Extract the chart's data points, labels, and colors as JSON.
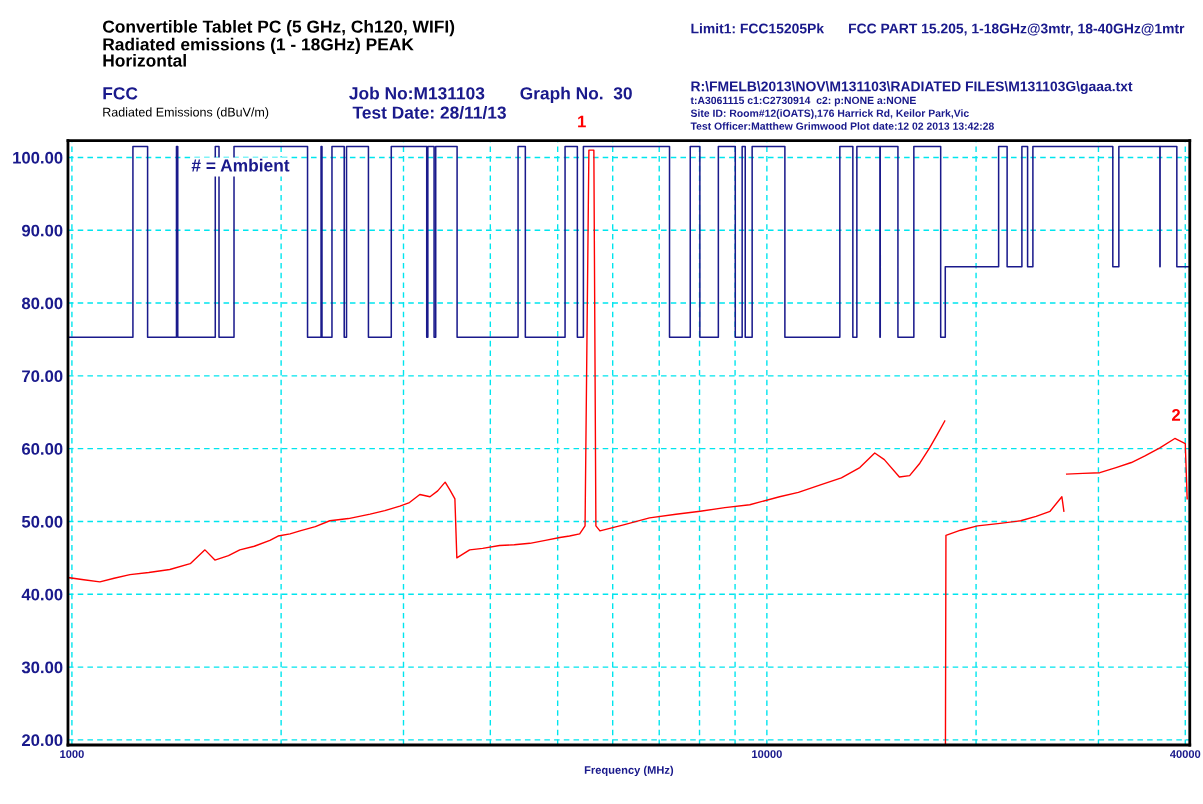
{
  "chart_data": {
    "type": "line",
    "title": "Convertible Tablet PC (5 GHz, Ch120, WIFI)",
    "subtitle": "Radiated emissions (1 - 18GHz) PEAK\nHorizontal",
    "xlabel": "Frequency (MHz)",
    "ylabel": "Radiated Emissions (dBuV/m)",
    "log": "x",
    "xlim": [
      987,
      40600
    ],
    "ylim": [
      19.3,
      102.3
    ],
    "xticks": [
      1000,
      {
        "value": 2000,
        "label": null
      },
      {
        "value": 3000,
        "label": null
      },
      {
        "value": 4000,
        "label": null
      },
      {
        "value": 5000,
        "label": null
      },
      {
        "value": 6000,
        "label": null
      },
      {
        "value": 7000,
        "label": null
      },
      {
        "value": 8000,
        "label": null
      },
      {
        "value": 9000,
        "label": null
      },
      10000,
      {
        "value": 20000,
        "label": null
      },
      {
        "value": 30000,
        "label": null
      },
      40000
    ],
    "yticks": [
      {
        "value": 20,
        "label": "20.00"
      },
      {
        "value": 30,
        "label": "30.00"
      },
      {
        "value": 40,
        "label": "40.00"
      },
      {
        "value": 50,
        "label": "50.00"
      },
      {
        "value": 60,
        "label": "60.00"
      },
      {
        "value": 70,
        "label": "70.00"
      },
      {
        "value": 80,
        "label": "80.00"
      },
      {
        "value": 90,
        "label": "90.00"
      },
      {
        "value": 100,
        "label": "100.00"
      }
    ],
    "grid": true,
    "series": [
      {
        "type": "step",
        "color": "#1a1a8c",
        "x": [
          987,
          1224,
          1285,
          1414,
          1420,
          1608,
          1628,
          1711,
          2183,
          2283,
          2290,
          2367,
          2465,
          2484,
          2671,
          2881,
          3240,
          3252,
          3320,
          3338,
          3583,
          4385,
          4492,
          5124,
          5337,
          5445,
          7243,
          7758,
          8009,
          8515,
          9006,
          9214,
          9308,
          9524,
          10615,
          12735,
          13296,
          13474,
          14543,
          14560,
          15438,
          16274,
          17787,
          18060,
          21552,
          22167,
          23279,
          23723,
          24143,
          31463,
          32098,
          36772,
          36800,
          38897,
          40420
        ],
        "values": [
          75.3,
          101.5,
          75.3,
          101.5,
          75.3,
          101.5,
          75.3,
          101.5,
          75.3,
          101.5,
          75.3,
          101.5,
          75.3,
          101.5,
          75.3,
          101.5,
          75.3,
          101.5,
          75.3,
          101.5,
          75.3,
          101.5,
          75.3,
          101.5,
          75.3,
          101.5,
          75.3,
          101.5,
          75.3,
          101.5,
          75.3,
          101.5,
          75.3,
          101.5,
          75.3,
          101.5,
          75.3,
          101.5,
          75.3,
          101.5,
          75.3,
          101.5,
          75.3,
          85,
          101.5,
          85,
          101.5,
          85,
          101.5,
          85,
          101.5,
          85,
          101.5,
          85,
          85
        ]
      },
      {
        "color": "#ff0000",
        "x": [
          987,
          1040,
          1097,
          1150,
          1212,
          1290,
          1383,
          1480,
          1554,
          1606,
          1680,
          1744,
          1830,
          1927,
          1980,
          2060,
          2129,
          2240,
          2350,
          2500,
          2686,
          2820,
          2964,
          3060,
          3167,
          3275,
          3360,
          3444,
          3500,
          3557,
          3580,
          3735,
          3900,
          4124,
          4330,
          4560,
          4800,
          5037,
          5200,
          5378,
          5475,
          5545,
          5637,
          5675,
          5752,
          6200,
          6779,
          7400,
          8018,
          8700,
          9450,
          10429,
          11100,
          11913,
          12800,
          13607,
          14296,
          14757,
          15514,
          16048,
          16600,
          17147,
          17600,
          18030,
          18060,
          18070,
          18100,
          19000,
          20097,
          21500,
          23186,
          24400,
          25556,
          26575,
          26755,
          26900,
          27000,
          28500,
          30140,
          31800,
          33460,
          35000,
          36772,
          38640,
          40000,
          40250
        ],
        "values": [
          42.3,
          42.0,
          41.7,
          42.2,
          42.7,
          43.0,
          43.4,
          44.2,
          46.1,
          44.7,
          45.3,
          46.1,
          46.6,
          47.4,
          48.0,
          48.3,
          48.7,
          49.3,
          50.1,
          50.4,
          51.0,
          51.5,
          52.1,
          52.6,
          53.7,
          53.4,
          54.2,
          55.4,
          54.3,
          53.1,
          45.0,
          46.1,
          46.3,
          46.7,
          46.8,
          47.0,
          47.4,
          47.8,
          48.0,
          48.3,
          49.4,
          101.0,
          101.0,
          49.4,
          48.7,
          49.5,
          50.5,
          51.0,
          51.4,
          51.9,
          52.3,
          53.4,
          54.0,
          55.0,
          56.0,
          57.4,
          59.4,
          58.5,
          56.1,
          56.3,
          58.0,
          60.1,
          62.0,
          63.8,
          null,
          19.3,
          48.1,
          48.8,
          49.4,
          49.7,
          50.1,
          50.7,
          51.4,
          53.4,
          51.4,
          null,
          56.5,
          56.6,
          56.7,
          57.4,
          58.1,
          59.0,
          60.1,
          61.4,
          60.7,
          53.1
        ]
      }
    ],
    "annotations": [
      "FCC",
      "Job No:M131103",
      "Graph No.  30",
      "Test Date: 28/11/13",
      "Limit1: FCC15205Pk",
      "FCC PART 15.205, 1-18GHz@3mtr, 18-40GHz@1mtr",
      "R:\\FMELB\\2013\\NOV\\M131103\\RADIATED FILES\\M131103G\\gaaa.txt",
      "t:A3061115 c1:C2730914  c2: p:NONE a:NONE",
      "Site ID: Room#12(iOATS),176 Harrick Rd, Keilor Park,Vic",
      "Test Officer:Matthew Grimwood Plot date:12 02 2013 13:42:28",
      "# = Ambient",
      {
        "text": "1",
        "x": 5600,
        "y": 101.0
      },
      {
        "text": "2",
        "x": 40130,
        "y": 60.7
      }
    ]
  }
}
